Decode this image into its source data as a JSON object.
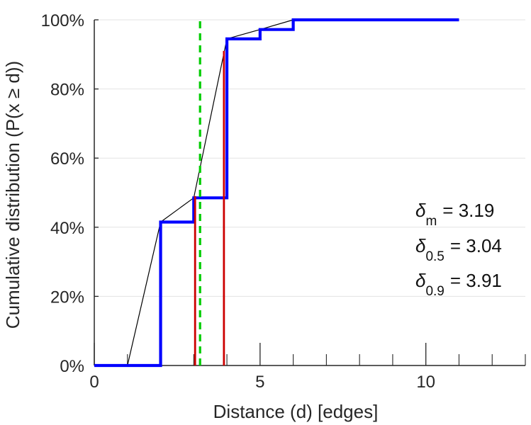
{
  "chart_data": {
    "type": "line",
    "xlabel": "Distance (d) [edges]",
    "ylabel": "Cumulative distribution (P(x ≥ d))",
    "xlim": [
      0,
      13
    ],
    "ylim": [
      0,
      100
    ],
    "x_ticks": [
      0,
      5,
      10
    ],
    "y_ticks": [
      0,
      20,
      40,
      60,
      80,
      100
    ],
    "x_tick_labels": [
      "0",
      "5",
      "10"
    ],
    "y_tick_labels": [
      "0%",
      "20%",
      "40%",
      "60%",
      "80%",
      "100%"
    ],
    "x_minor_ticks": [
      1,
      2,
      3,
      4,
      6,
      7,
      8,
      9,
      11,
      12,
      13
    ],
    "grid": true,
    "series": [
      {
        "style": "line",
        "color": "#000000",
        "x": [
          1,
          2,
          3,
          4,
          5,
          6,
          7
        ],
        "values": [
          0,
          41.5,
          48.5,
          94.5,
          97.2,
          100,
          100
        ]
      },
      {
        "style": "step",
        "color": "#0000ff",
        "x": [
          0,
          2,
          2,
          3,
          3,
          4,
          4,
          5,
          5,
          6,
          6,
          11
        ],
        "values": [
          0,
          0,
          41.5,
          41.5,
          48.5,
          48.5,
          94.5,
          94.5,
          97.2,
          97.2,
          100,
          100
        ]
      }
    ],
    "reference_lines": [
      {
        "style": "solid",
        "color": "#cc0000",
        "x": 3.04,
        "y_max": 49
      },
      {
        "style": "solid",
        "color": "#cc0000",
        "x": 3.91,
        "y_max": 91
      },
      {
        "style": "dashed",
        "color": "#00cc00",
        "x": 3.19,
        "y_max": 100
      }
    ],
    "annotations": [
      {
        "symbol": "δ",
        "subscript": "m",
        "value": "= 3.19"
      },
      {
        "symbol": "δ",
        "subscript": "0.5",
        "value": "= 3.04"
      },
      {
        "symbol": "δ",
        "subscript": "0.9",
        "value": "= 3.91"
      }
    ]
  }
}
